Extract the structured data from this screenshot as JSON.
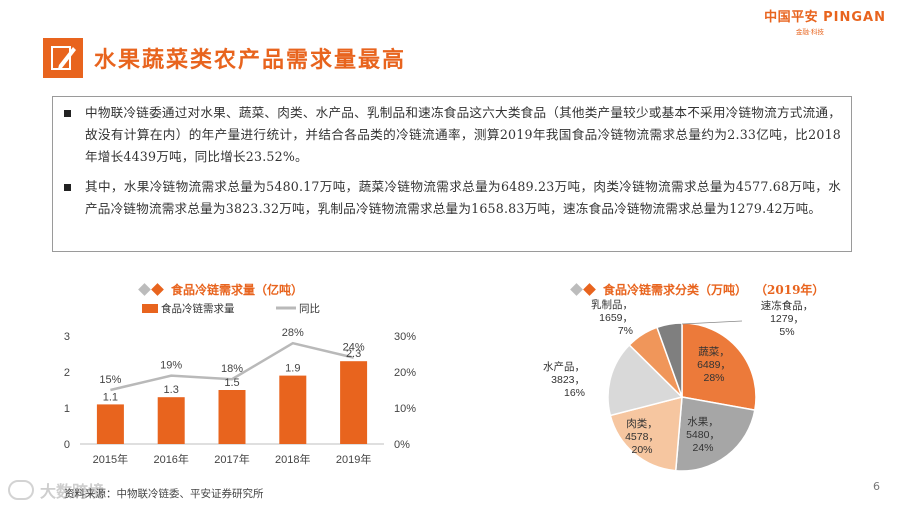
{
  "brand": {
    "name_cn": "中国平安",
    "name_en": "PINGAN",
    "tagline": "金融·科技"
  },
  "slide": {
    "title": "水果蔬菜类农产品需求量最高",
    "bullets": [
      "中物联冷链委通过对水果、蔬菜、肉类、水产品、乳制品和速冻食品这六大类食品（其他类产量较少或基本不采用冷链物流方式流通，故没有计算在内）的年产量进行统计，并结合各品类的冷链流通率，测算2019年我国食品冷链物流需求总量约为2.33亿吨，比2018年增长4439万吨，同比增长23.52%。",
      "其中，水果冷链物流需求总量为5480.17万吨，蔬菜冷链物流需求总量为6489.23万吨，肉类冷链物流需求总量为4577.68万吨，水产品冷链物流需求总量为3823.32万吨，乳制品冷链物流需求总量为1658.83万吨，速冻食品冷链物流需求总量为1279.42万吨。"
    ],
    "source": "资料来源：中物联冷链委、平安证券研究所",
    "page_number": "6",
    "watermark": "大数跨境"
  },
  "colors": {
    "accent": "#e8641e",
    "gray": "#bdbdbd",
    "line_gray": "#b9b9b9"
  },
  "chart_data": [
    {
      "type": "bar",
      "title": "食品冷链需求量（亿吨）",
      "categories": [
        "2015年",
        "2016年",
        "2017年",
        "2018年",
        "2019年"
      ],
      "series": [
        {
          "name": "食品冷链需求量",
          "kind": "bar",
          "axis": "left",
          "values": [
            1.1,
            1.3,
            1.5,
            1.9,
            2.3
          ],
          "labels": [
            "1.1",
            "1.3",
            "1.5",
            "1.9",
            "2.3"
          ]
        },
        {
          "name": "同比",
          "kind": "line",
          "axis": "right",
          "values": [
            15,
            19,
            18,
            28,
            24
          ],
          "labels": [
            "15%",
            "19%",
            "18%",
            "28%",
            "24%"
          ]
        }
      ],
      "ylim": [
        0,
        3
      ],
      "yticks": [
        "0",
        "1",
        "2",
        "3"
      ],
      "y2lim": [
        0,
        30
      ],
      "y2ticks": [
        "0%",
        "10%",
        "20%",
        "30%"
      ],
      "legend": "top"
    },
    {
      "type": "pie",
      "title": "食品冷链需求分类（万吨）",
      "title_year": "（2019年）",
      "slices": [
        {
          "name": "蔬菜",
          "value": 6489,
          "pct": "28%",
          "color": "#ec7a3a"
        },
        {
          "name": "水果",
          "value": 5480,
          "pct": "24%",
          "color": "#a6a6a6"
        },
        {
          "name": "肉类",
          "value": 4578,
          "pct": "20%",
          "color": "#f6c6a0"
        },
        {
          "name": "水产品",
          "value": 3823,
          "pct": "16%",
          "color": "#d9d9d9"
        },
        {
          "name": "乳制品",
          "value": 1659,
          "pct": "7%",
          "color": "#f0965a"
        },
        {
          "name": "速冻食品",
          "value": 1279,
          "pct": "5%",
          "color": "#7f7f7f"
        }
      ]
    }
  ]
}
